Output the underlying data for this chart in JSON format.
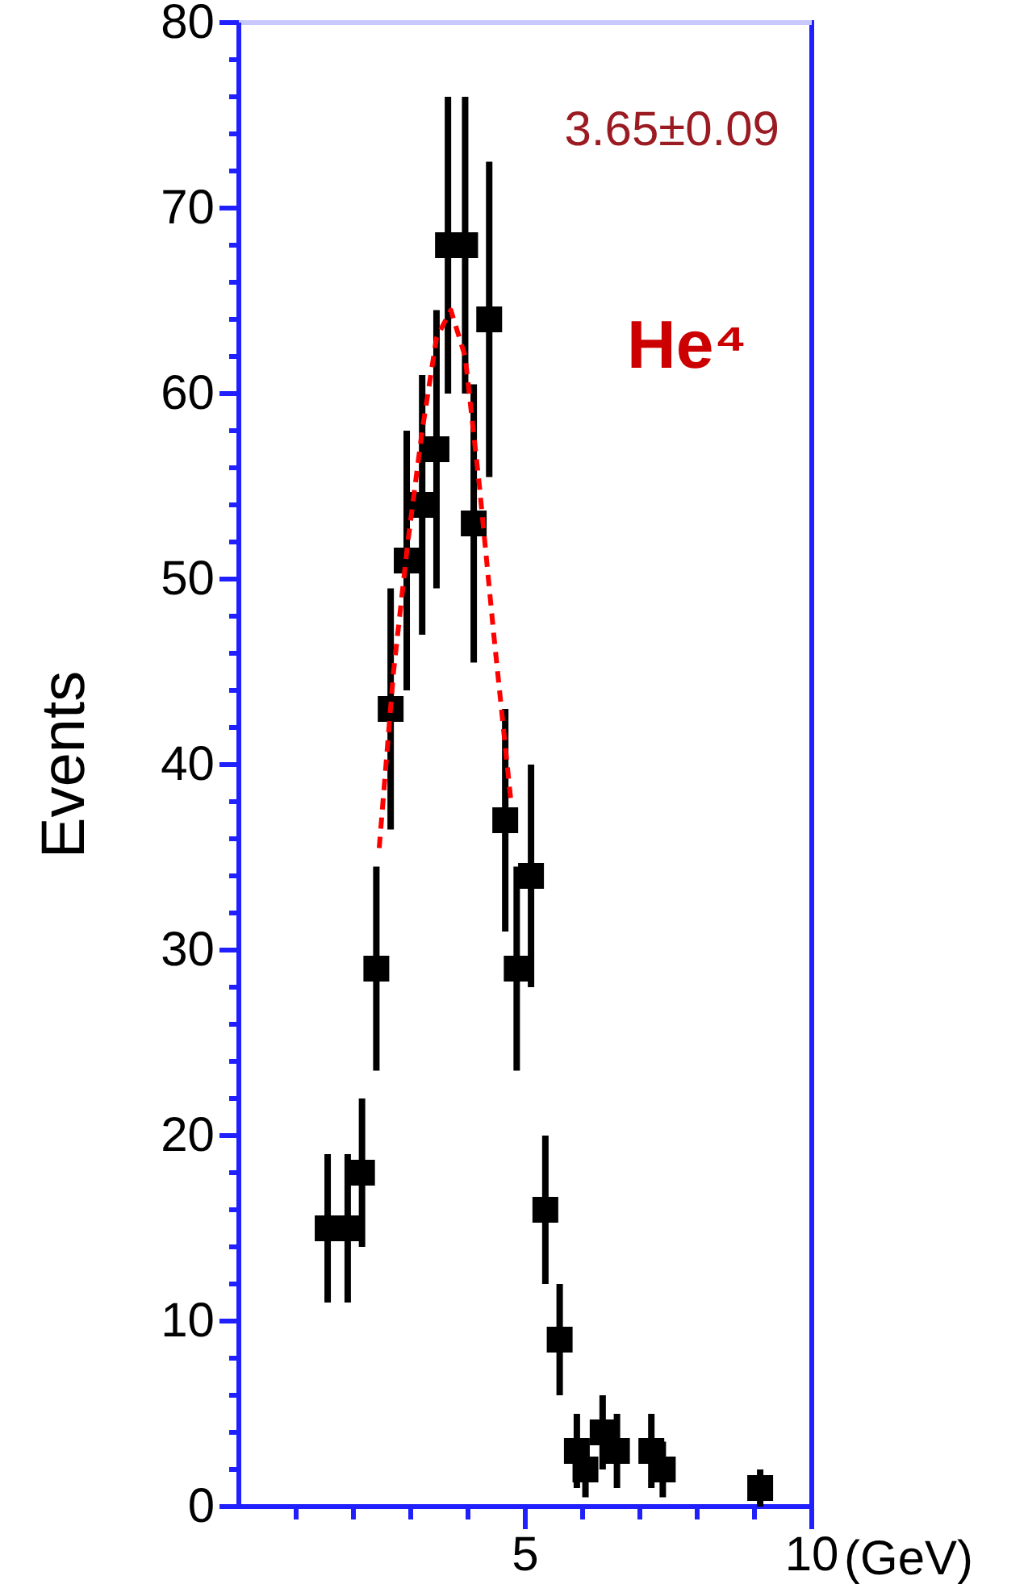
{
  "chart_data": {
    "type": "scatter",
    "ylabel": "Events",
    "xlabel": "(GeV)",
    "xlim": [
      0,
      10
    ],
    "ylim": [
      0,
      80
    ],
    "xticks": [
      {
        "value": 1,
        "label": null
      },
      {
        "value": 2,
        "label": null
      },
      {
        "value": 3,
        "label": null
      },
      {
        "value": 4,
        "label": null
      },
      5,
      {
        "value": 6,
        "label": null
      },
      {
        "value": 7,
        "label": null
      },
      {
        "value": 8,
        "label": null
      },
      {
        "value": 9,
        "label": null
      },
      10
    ],
    "yticks": [
      0,
      {
        "value": 2,
        "label": null
      },
      {
        "value": 4,
        "label": null
      },
      {
        "value": 6,
        "label": null
      },
      {
        "value": 8,
        "label": null
      },
      10,
      {
        "value": 12,
        "label": null
      },
      {
        "value": 14,
        "label": null
      },
      {
        "value": 16,
        "label": null
      },
      {
        "value": 18,
        "label": null
      },
      20,
      {
        "value": 22,
        "label": null
      },
      {
        "value": 24,
        "label": null
      },
      {
        "value": 26,
        "label": null
      },
      {
        "value": 28,
        "label": null
      },
      30,
      {
        "value": 32,
        "label": null
      },
      {
        "value": 34,
        "label": null
      },
      {
        "value": 36,
        "label": null
      },
      {
        "value": 38,
        "label": null
      },
      40,
      {
        "value": 42,
        "label": null
      },
      {
        "value": 44,
        "label": null
      },
      {
        "value": 46,
        "label": null
      },
      {
        "value": 48,
        "label": null
      },
      50,
      {
        "value": 52,
        "label": null
      },
      {
        "value": 54,
        "label": null
      },
      {
        "value": 56,
        "label": null
      },
      {
        "value": 58,
        "label": null
      },
      60,
      {
        "value": 62,
        "label": null
      },
      {
        "value": 64,
        "label": null
      },
      {
        "value": 66,
        "label": null
      },
      {
        "value": 68,
        "label": null
      },
      70,
      {
        "value": 72,
        "label": null
      },
      {
        "value": 74,
        "label": null
      },
      {
        "value": 76,
        "label": null
      },
      {
        "value": 78,
        "label": null
      },
      80
    ],
    "grid": false,
    "marker": "square",
    "annotations": [
      "3.65±0.09",
      "He⁴"
    ],
    "series": [
      {
        "color": "#000000",
        "x": [
          1.55,
          1.9,
          2.15,
          2.4,
          2.65,
          2.93,
          3.2,
          3.45,
          3.65,
          3.95,
          4.1,
          4.37,
          4.65,
          4.85,
          5.1,
          5.35,
          5.6,
          5.9,
          6.05,
          6.35,
          6.6,
          7.2,
          7.4,
          9.1
        ],
        "values": [
          15,
          15,
          18,
          29,
          43,
          51,
          54,
          57,
          68,
          68,
          53,
          64,
          37,
          29,
          34,
          16,
          9,
          3,
          2,
          4,
          3,
          3,
          2,
          1
        ],
        "errors": [
          4,
          4,
          4,
          5.5,
          6.5,
          7,
          7,
          7.5,
          8,
          8,
          7.5,
          8.5,
          6,
          5.5,
          6,
          4,
          3,
          2,
          1.5,
          2,
          2,
          2,
          1.5,
          1
        ]
      },
      {
        "type": "line",
        "color": "#ff0000",
        "line_style": "dashed",
        "marker": "none",
        "x": [
          2.45,
          2.7,
          2.95,
          3.2,
          3.45,
          3.7,
          3.95,
          4.2,
          4.45,
          4.75
        ],
        "values": [
          35.5,
          45,
          52,
          58,
          63,
          64.5,
          62,
          55,
          47,
          38
        ]
      }
    ]
  }
}
